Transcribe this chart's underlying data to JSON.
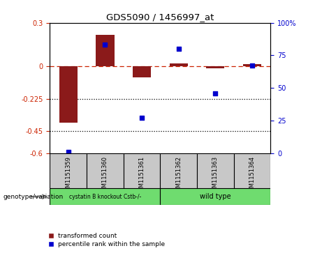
{
  "title": "GDS5090 / 1456997_at",
  "samples": [
    "GSM1151359",
    "GSM1151360",
    "GSM1151361",
    "GSM1151362",
    "GSM1151363",
    "GSM1151364"
  ],
  "transformed_count": [
    -0.39,
    0.215,
    -0.075,
    0.02,
    -0.015,
    0.015
  ],
  "percentile_rank": [
    1,
    83,
    27,
    80,
    46,
    67
  ],
  "group1_label": "cystatin B knockout Cstb-/-",
  "group2_label": "wild type",
  "group_label_text": "genotype/variation",
  "group1_indices": [
    0,
    1,
    2
  ],
  "group2_indices": [
    3,
    4,
    5
  ],
  "group_color": "#6FDC6F",
  "ylim_left": [
    -0.6,
    0.3
  ],
  "ylim_right": [
    0,
    100
  ],
  "yticks_left": [
    -0.6,
    -0.45,
    -0.225,
    0,
    0.3
  ],
  "yticks_right": [
    0,
    25,
    50,
    75,
    100
  ],
  "hlines_dotted": [
    -0.45,
    -0.225
  ],
  "bar_color": "#8B1A1A",
  "dot_color": "#0000CD",
  "bar_width": 0.5,
  "sample_box_color": "#C8C8C8",
  "legend_items": [
    "transformed count",
    "percentile rank within the sample"
  ],
  "left_tick_color": "#CC2200",
  "right_tick_color": "#0000CD"
}
